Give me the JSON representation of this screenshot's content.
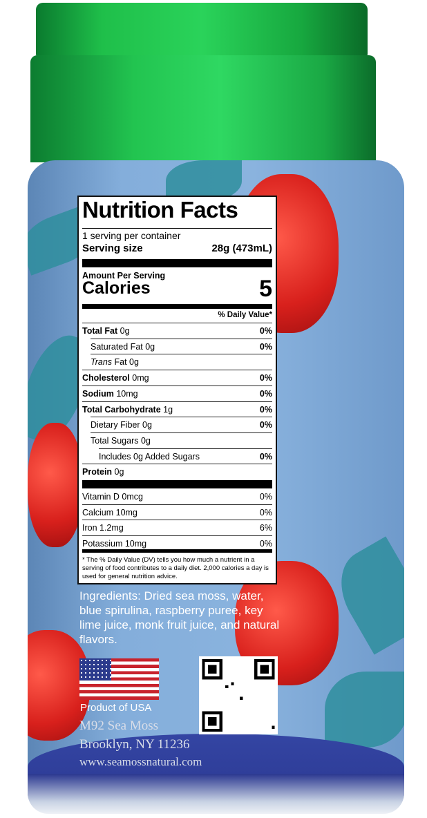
{
  "nutrition": {
    "title": "Nutrition Facts",
    "servings": "1 serving per container",
    "serving_size_label": "Serving size",
    "serving_size_value": "28g (473mL)",
    "amount_per_serving": "Amount Per Serving",
    "calories_label": "Calories",
    "calories_value": "5",
    "dv_header": "% Daily Value*",
    "rows": [
      {
        "label": "Total Fat",
        "amount": " 0g",
        "dv": "0%",
        "bold": true
      },
      {
        "label": "Saturated Fat 0g",
        "amount": "",
        "dv": "0%",
        "indent": 1
      },
      {
        "label": "Trans",
        "amount": " Fat 0g",
        "dv": "",
        "indent": 1,
        "italic": true
      },
      {
        "label": "Cholesterol",
        "amount": " 0mg",
        "dv": "0%",
        "bold": true
      },
      {
        "label": "Sodium",
        "amount": " 10mg",
        "dv": "0%",
        "bold": true
      },
      {
        "label": "Total Carbohydrate",
        "amount": " 1g",
        "dv": "0%",
        "bold": true
      },
      {
        "label": "Dietary Fiber 0g",
        "amount": "",
        "dv": "0%",
        "indent": 1
      },
      {
        "label": "Total Sugars 0g",
        "amount": "",
        "dv": "",
        "indent": 1
      },
      {
        "label": "Includes 0g Added Sugars",
        "amount": "",
        "dv": "0%",
        "indent": 2
      },
      {
        "label": "Protein",
        "amount": " 0g",
        "dv": "",
        "bold": true
      }
    ],
    "vitamins": [
      {
        "label": "Vitamin D 0mcg",
        "dv": "0%"
      },
      {
        "label": "Calcium 10mg",
        "dv": "0%"
      },
      {
        "label": "Iron 1.2mg",
        "dv": "6%"
      },
      {
        "label": "Potassium 10mg",
        "dv": "0%"
      }
    ],
    "footnote": "* The % Daily Value (DV) tells you how much a nutrient in a serving of food contributes to a daily diet. 2,000 calories a day is used for general nutrition advice."
  },
  "ingredients": "Ingredients: Dried sea moss, water, blue spirulina, raspberry puree, key lime juice, monk fruit juice, and natural flavors.",
  "origin": "Product of USA",
  "brand": "M92 Sea Moss",
  "address": "Brooklyn, NY 11236",
  "website": "www.seamossnatural.com",
  "colors": {
    "lid": "#22c450",
    "label_bg": "#84aedb",
    "powder": "#2a3790"
  }
}
